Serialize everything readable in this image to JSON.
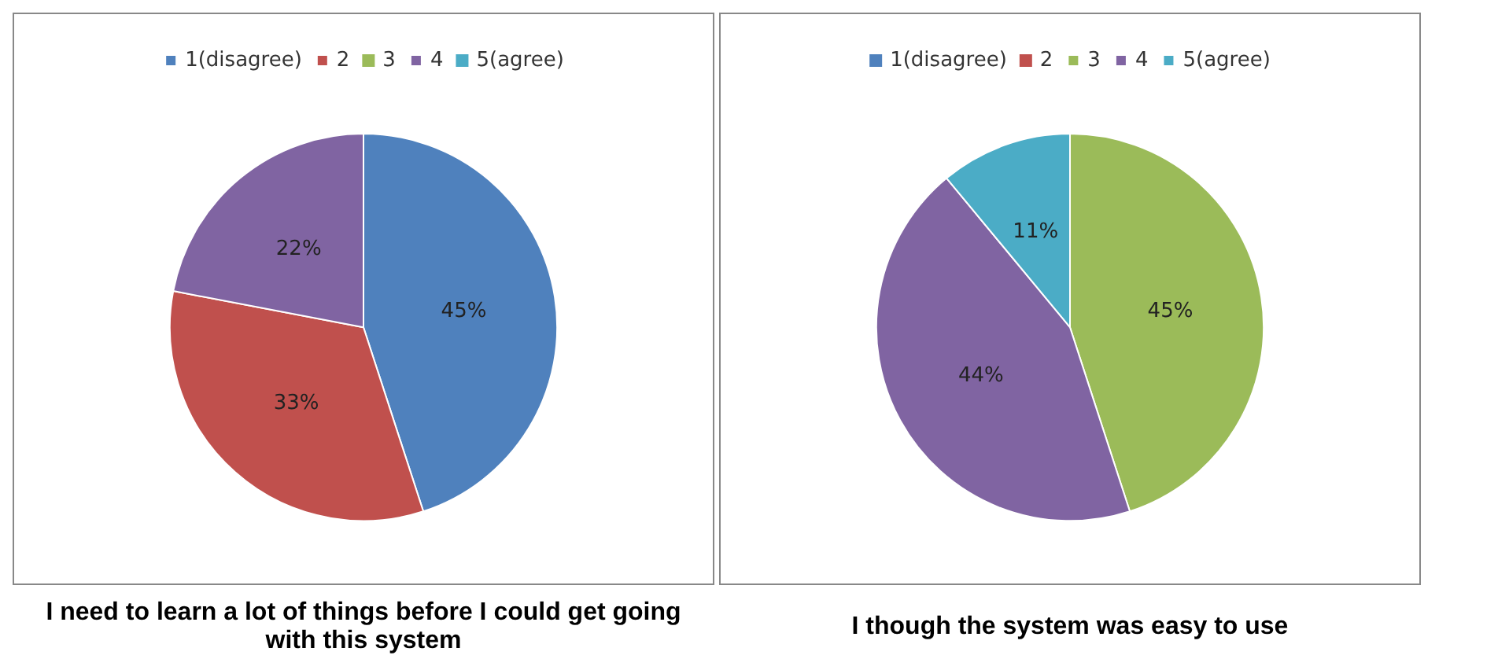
{
  "chart_data": [
    {
      "type": "pie",
      "title": "I need to learn a lot of things before I could get going with this system",
      "categories": [
        "1(disagree)",
        "2",
        "3",
        "4",
        "5(agree)"
      ],
      "values": [
        45,
        33,
        0,
        22,
        0
      ],
      "value_labels": [
        "45%",
        "33%",
        null,
        "22%",
        null
      ],
      "colors": [
        "#4f81bd",
        "#c0504d",
        "#9bbb59",
        "#8064a2",
        "#4bacc6"
      ],
      "legend": "top"
    },
    {
      "type": "pie",
      "title": "I though the system was easy to use",
      "categories": [
        "1(disagree)",
        "2",
        "3",
        "4",
        "5(agree)"
      ],
      "values": [
        0,
        0,
        45,
        44,
        11
      ],
      "value_labels": [
        null,
        null,
        "45%",
        "44%",
        "11%"
      ],
      "colors": [
        "#4f81bd",
        "#c0504d",
        "#9bbb59",
        "#8064a2",
        "#4bacc6"
      ],
      "legend": "top"
    }
  ]
}
